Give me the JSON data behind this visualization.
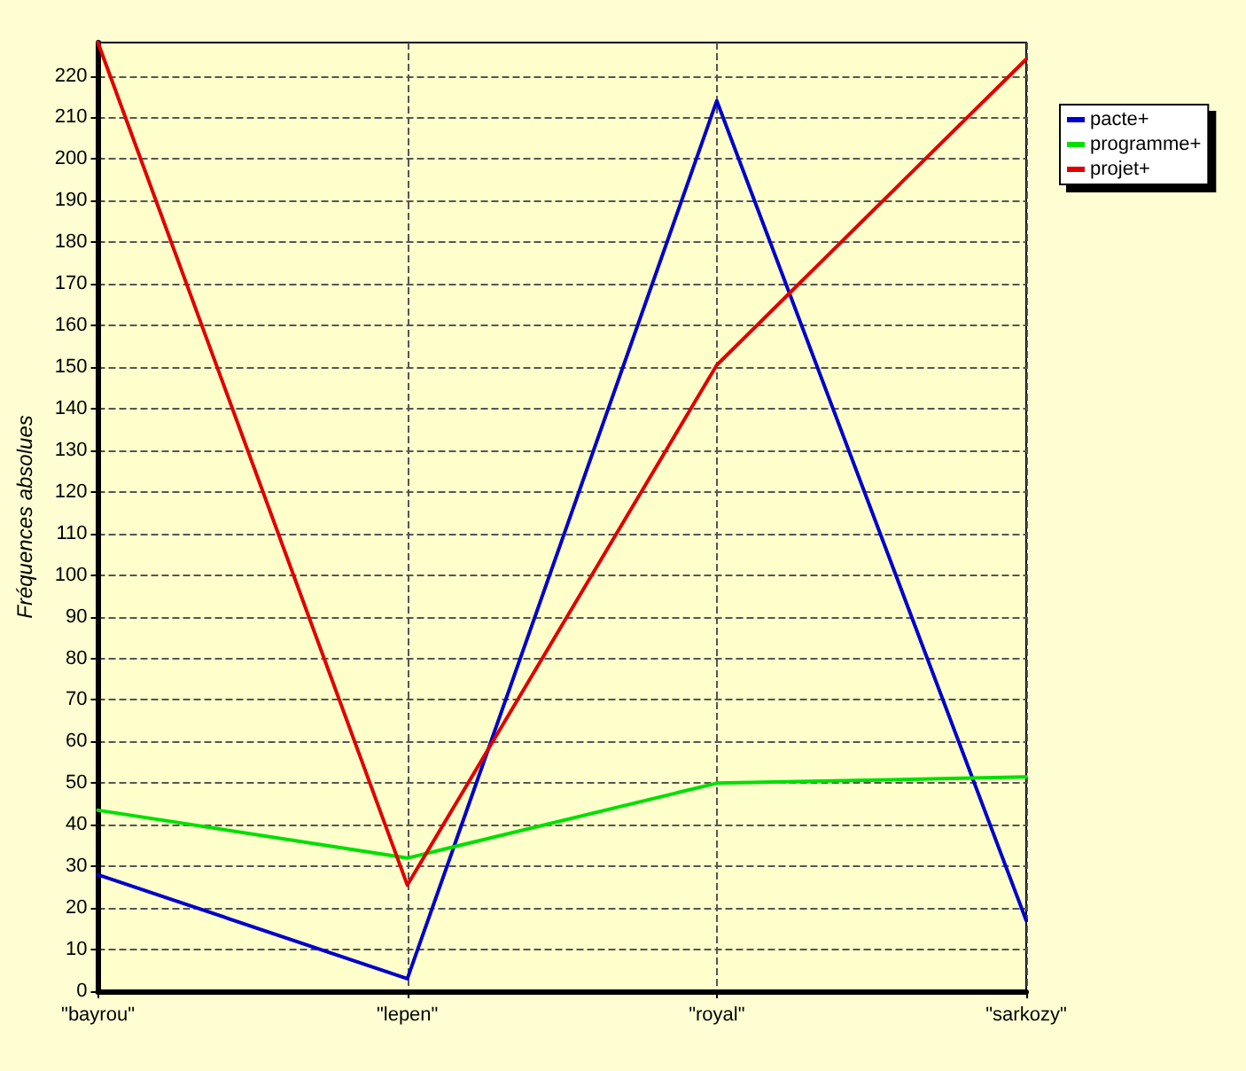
{
  "chart_data": {
    "type": "line",
    "ylabel": "Fréquences absolues",
    "categories": [
      "\"bayrou\"",
      "\"lepen\"",
      "\"royal\"",
      "\"sarkozy\""
    ],
    "series": [
      {
        "name": "pacte+",
        "color": "#0000cc",
        "values": [
          28,
          3,
          214,
          17
        ]
      },
      {
        "name": "programme+",
        "color": "#00e000",
        "values": [
          43.5,
          32,
          50,
          51.5
        ]
      },
      {
        "name": "projet+",
        "color": "#e00000",
        "values": [
          228,
          25.5,
          150.5,
          224
        ]
      }
    ],
    "ylim": [
      0,
      228
    ],
    "yticks": [
      0,
      10,
      20,
      30,
      40,
      50,
      60,
      70,
      80,
      90,
      100,
      110,
      120,
      130,
      140,
      150,
      160,
      170,
      180,
      190,
      200,
      210,
      220
    ],
    "grid": true,
    "legend": "top right",
    "marker": "none",
    "line_style": "solid"
  }
}
